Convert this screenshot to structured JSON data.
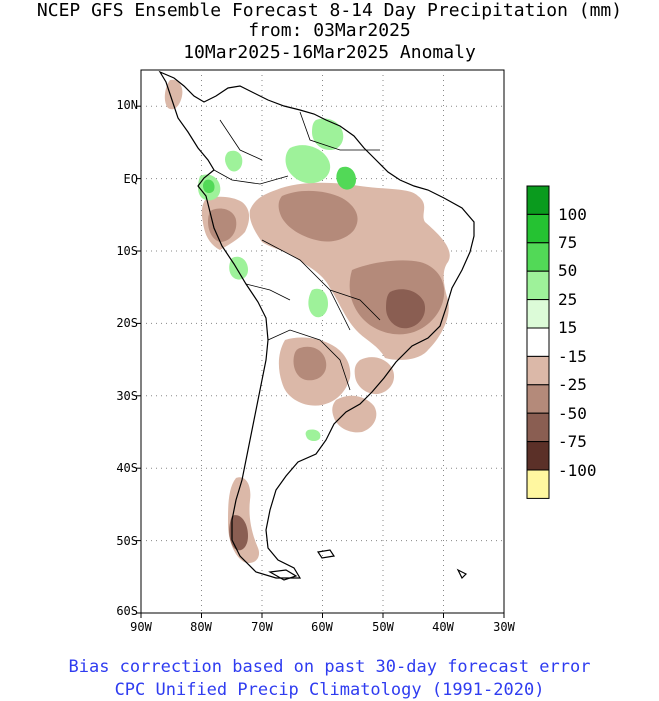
{
  "title": {
    "line1": "NCEP GFS Ensemble Forecast 8-14 Day Precipitation (mm)",
    "line2": "from: 03Mar2025",
    "line3": "10Mar2025-16Mar2025 Anomaly"
  },
  "footer": {
    "line1": "Bias correction based on past 30-day forecast error",
    "line2": "CPC Unified Precip Climatology (1991-2020)"
  },
  "map": {
    "lon_range": [
      -90,
      -30
    ],
    "lat_range": [
      -60,
      15
    ],
    "lat_ticks": [
      "10N",
      "EQ",
      "10S",
      "20S",
      "30S",
      "40S",
      "50S",
      "60S"
    ],
    "lon_ticks": [
      "90W",
      "80W",
      "70W",
      "60W",
      "50W",
      "40W",
      "30W"
    ],
    "grid": "dotted"
  },
  "legend": {
    "placement": "right",
    "labels": [
      "100",
      "75",
      "50",
      "25",
      "15",
      "-15",
      "-25",
      "-50",
      "-75",
      "-100"
    ],
    "colors": [
      "#0a9b1e",
      "#25c232",
      "#52d957",
      "#9ef29a",
      "#dcfbd8",
      "#ffffff",
      "#dbb8a8",
      "#b48a7a",
      "#8a5e52",
      "#5b3028",
      "#fff7a0"
    ]
  },
  "colors": {
    "dry_light": "#dbb8a8",
    "dry_mid": "#b48a7a",
    "dry_dark": "#8a5e52",
    "wet_light": "#9ef29a",
    "wet_mid": "#52d957",
    "footer_text": "#2f3cf0"
  }
}
